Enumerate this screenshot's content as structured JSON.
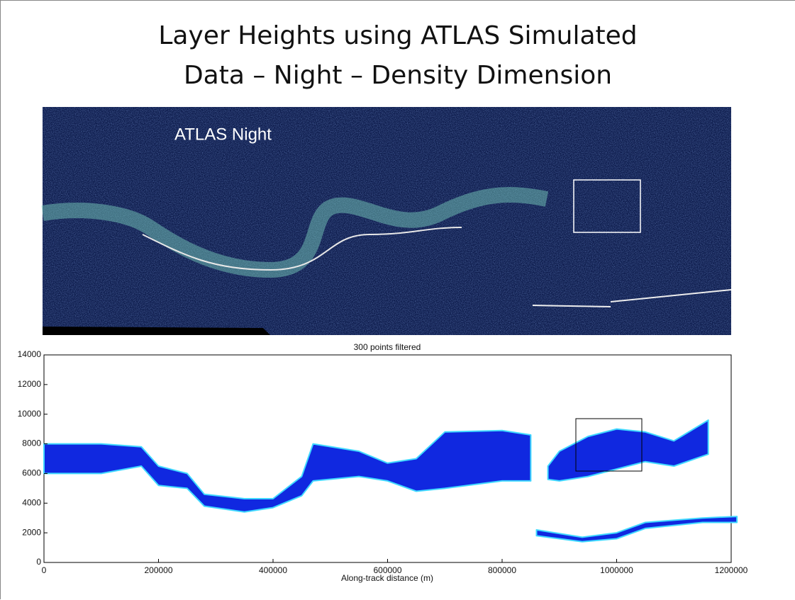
{
  "slide_title": "Layer Heights using ATLAS Simulated Data – Night – Density Dimension",
  "image_label": "ATLAS Night",
  "chart_data": {
    "type": "band",
    "title": "300 points filtered",
    "xlabel": "Along-track distance (m)",
    "xlim": [
      0,
      1200000
    ],
    "ylim": [
      0,
      14000
    ],
    "xticks": [
      0,
      200000,
      400000,
      600000,
      800000,
      1000000,
      1200000
    ],
    "yticks": [
      0,
      2000,
      4000,
      6000,
      8000,
      10000,
      12000,
      14000
    ],
    "color": "#1028e0",
    "edge_color": "#40d8ff",
    "bands": [
      {
        "x": [
          0,
          100000,
          170000,
          200000,
          250000,
          280000,
          350000,
          400000,
          450000,
          470000,
          550000,
          600000,
          650000,
          700000,
          800000,
          850000
        ],
        "low": [
          6000,
          6000,
          6500,
          5200,
          5000,
          3800,
          3400,
          3700,
          4500,
          5500,
          5800,
          5500,
          4800,
          5000,
          5500,
          5500
        ],
        "high": [
          8000,
          8000,
          7800,
          6500,
          6000,
          4600,
          4300,
          4300,
          5800,
          8000,
          7500,
          6700,
          7000,
          8800,
          8900,
          8600
        ]
      },
      {
        "x": [
          880000,
          900000,
          950000,
          1000000,
          1050000,
          1100000,
          1160000
        ],
        "low": [
          5600,
          5500,
          5800,
          6300,
          6800,
          6500,
          7300
        ],
        "high": [
          6500,
          7500,
          8500,
          9000,
          8800,
          8200,
          9600
        ]
      },
      {
        "x": [
          860000,
          940000,
          1000000,
          1050000,
          1150000,
          1210000
        ],
        "low": [
          1800,
          1400,
          1600,
          2300,
          2700,
          2700
        ],
        "high": [
          2200,
          1700,
          2000,
          2700,
          3000,
          3100
        ]
      }
    ]
  }
}
